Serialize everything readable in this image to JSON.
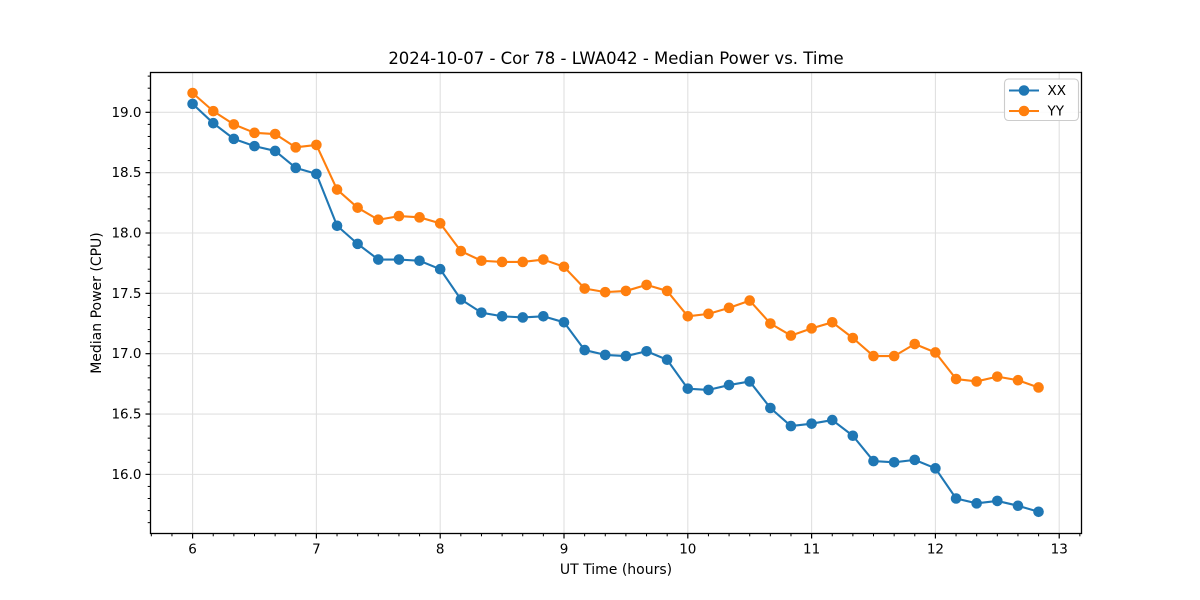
{
  "chart_data": {
    "type": "line",
    "title": "2024-10-07 - Cor 78 - LWA042 - Median Power vs. Time",
    "xlabel": "UT Time (hours)",
    "ylabel": "Median Power (CPU)",
    "xlim": [
      5.66,
      13.18
    ],
    "ylim": [
      15.51,
      19.33
    ],
    "grid": {
      "major": true,
      "minor": false,
      "color": "#e0e0e0",
      "legend_position": "upper right"
    },
    "x_axis": {
      "tick_values": [
        6,
        7,
        8,
        9,
        10,
        11,
        12,
        13
      ],
      "tick_labels": [
        "6",
        "7",
        "8",
        "9",
        "10",
        "11",
        "12",
        "13"
      ],
      "minor_divisions": 6
    },
    "y_axis": {
      "tick_values": [
        16.0,
        16.5,
        17.0,
        17.5,
        18.0,
        18.5,
        19.0
      ],
      "tick_labels": [
        "16.0",
        "16.5",
        "17.0",
        "17.5",
        "18.0",
        "18.5",
        "19.0"
      ],
      "minor_divisions": 5
    },
    "x": [
      6.0,
      6.167,
      6.333,
      6.5,
      6.667,
      6.833,
      7.0,
      7.167,
      7.333,
      7.5,
      7.667,
      7.833,
      8.0,
      8.167,
      8.333,
      8.5,
      8.667,
      8.833,
      9.0,
      9.167,
      9.333,
      9.5,
      9.667,
      9.833,
      10.0,
      10.167,
      10.333,
      10.5,
      10.667,
      10.833,
      11.0,
      11.167,
      11.333,
      11.5,
      11.667,
      11.833,
      12.0,
      12.167,
      12.333,
      12.5,
      12.667,
      12.833
    ],
    "series": [
      {
        "name": "XX",
        "color": "#1f77b4",
        "marker": "circle",
        "values": [
          19.07,
          18.91,
          18.78,
          18.72,
          18.68,
          18.54,
          18.49,
          18.06,
          17.91,
          17.78,
          17.78,
          17.77,
          17.7,
          17.45,
          17.34,
          17.31,
          17.3,
          17.31,
          17.26,
          17.03,
          16.99,
          16.98,
          17.02,
          16.95,
          16.71,
          16.7,
          16.74,
          16.77,
          16.55,
          16.4,
          16.42,
          16.45,
          16.32,
          16.11,
          16.1,
          16.12,
          16.05,
          15.8,
          15.76,
          15.78,
          15.74,
          15.69
        ]
      },
      {
        "name": "YY",
        "color": "#ff7f0e",
        "marker": "circle",
        "values": [
          19.16,
          19.01,
          18.9,
          18.83,
          18.82,
          18.71,
          18.73,
          18.36,
          18.21,
          18.11,
          18.14,
          18.13,
          18.08,
          17.85,
          17.77,
          17.76,
          17.76,
          17.78,
          17.72,
          17.54,
          17.51,
          17.52,
          17.57,
          17.52,
          17.31,
          17.33,
          17.38,
          17.44,
          17.25,
          17.15,
          17.21,
          17.26,
          17.13,
          16.98,
          16.98,
          17.08,
          17.01,
          16.79,
          16.77,
          16.81,
          16.78,
          16.72
        ]
      }
    ],
    "legend": {
      "entries": [
        "XX",
        "YY"
      ]
    }
  }
}
